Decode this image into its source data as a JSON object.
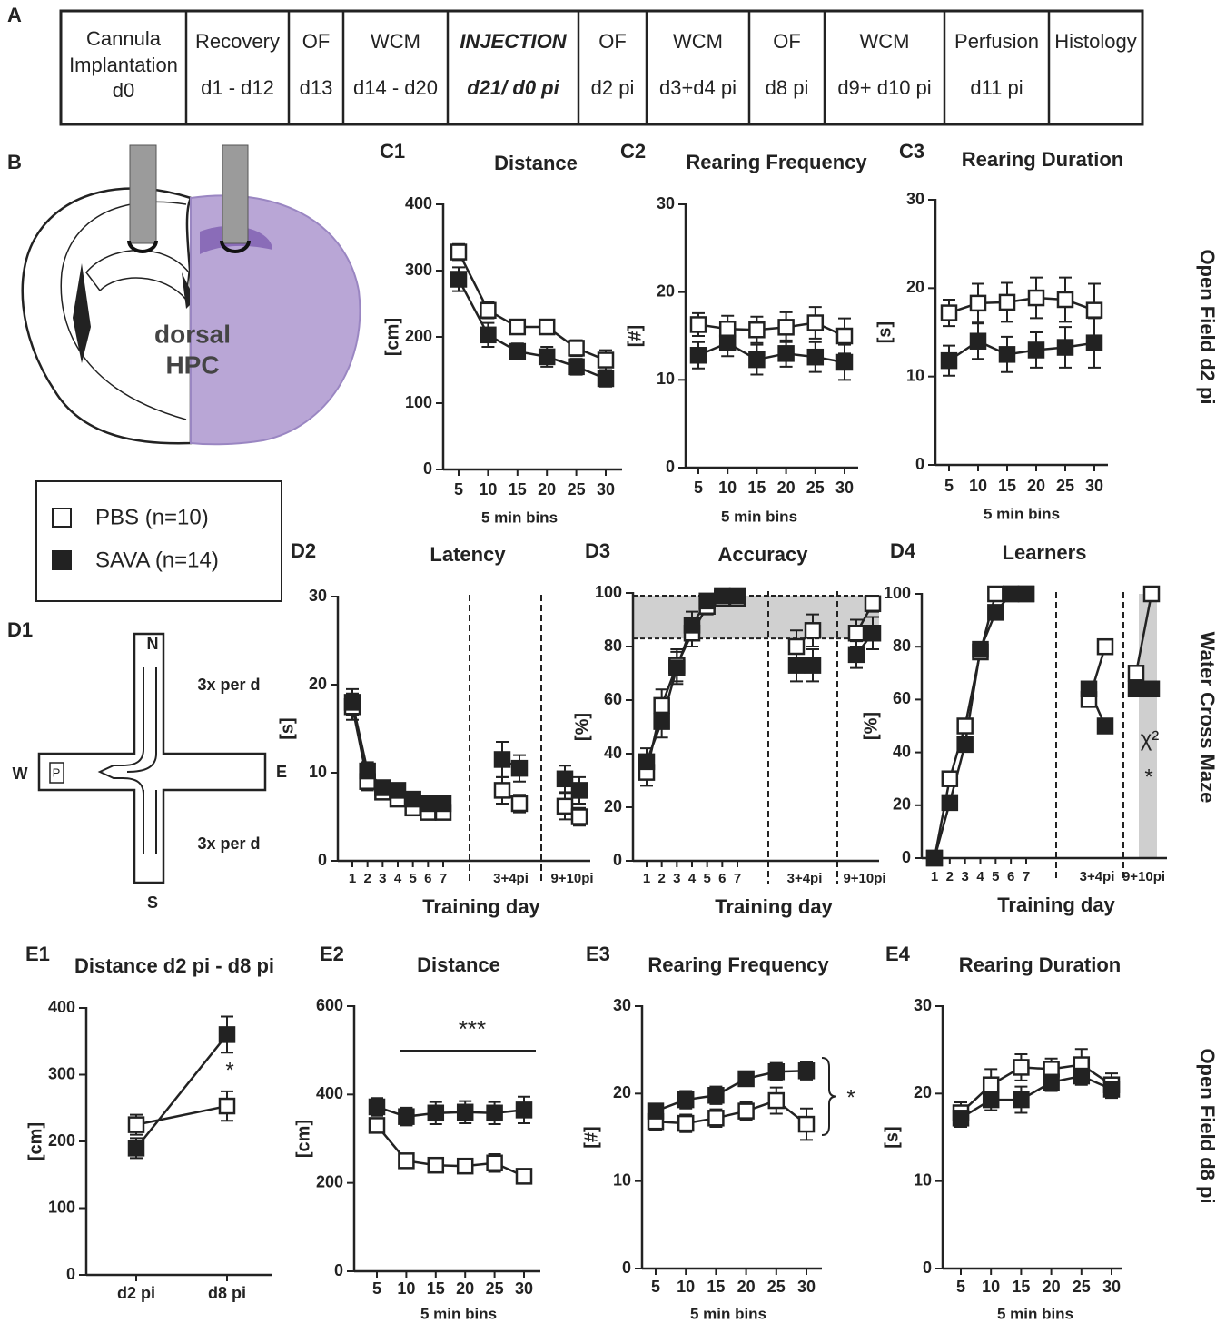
{
  "panel_labels": {
    "A": "A",
    "B": "B",
    "D1": "D1"
  },
  "timeline": {
    "cells": [
      {
        "lines": [
          "Cannula",
          "Implantation",
          "d0"
        ]
      },
      {
        "lines": [
          "Recovery",
          "d1 - d12"
        ]
      },
      {
        "lines": [
          "OF",
          "d13"
        ]
      },
      {
        "lines": [
          "WCM",
          "d14 - d20"
        ]
      },
      {
        "lines": [
          "INJECTION",
          "d21/ d0 pi"
        ]
      },
      {
        "lines": [
          "OF",
          "d2 pi"
        ]
      },
      {
        "lines": [
          "WCM",
          "d3+d4 pi"
        ]
      },
      {
        "lines": [
          "OF",
          "d8 pi"
        ]
      },
      {
        "lines": [
          "WCM",
          "d9+ d10 pi"
        ]
      },
      {
        "lines": [
          "Perfusion",
          "d11 pi"
        ]
      },
      {
        "lines": [
          "Histology"
        ]
      }
    ]
  },
  "brain": {
    "labels": [
      "dorsal",
      "HPC"
    ]
  },
  "maze": {
    "labels": {
      "N": "N",
      "S": "S",
      "E": "E",
      "W": "W",
      "P": "P",
      "top": "3x per d",
      "bottom": "3x per d"
    }
  },
  "legend": [
    {
      "name": "PBS (n=10)",
      "color": "#ffffff"
    },
    {
      "name": "SAVA (n=14)",
      "color": "#222222"
    }
  ],
  "row_labels": [
    "Open Field d2 pi",
    "Water Cross Maze",
    "Open Field d8 pi"
  ],
  "chart_data": [
    {
      "type": "line",
      "panel": "C1",
      "title": "Distance",
      "xlabel": "5 min bins",
      "ylabel": "[cm]",
      "ylim": [
        0,
        400
      ],
      "yticks": [
        0,
        100,
        200,
        300,
        400
      ],
      "sections": [
        {
          "categories": [
            "5",
            "10",
            "15",
            "20",
            "25",
            "30"
          ],
          "series": [
            {
              "values": [
                328,
                240,
                215,
                215,
                183,
                165
              ],
              "errors": [
                12,
                12,
                10,
                10,
                12,
                15
              ]
            },
            {
              "values": [
                287,
                203,
                178,
                170,
                155,
                137
              ],
              "errors": [
                18,
                18,
                12,
                15,
                12,
                12
              ]
            }
          ]
        }
      ]
    },
    {
      "type": "line",
      "panel": "C2",
      "title": "Rearing Frequency",
      "xlabel": "5 min bins",
      "ylabel": "[#]",
      "ylim": [
        0,
        30
      ],
      "yticks": [
        0,
        10,
        20,
        30
      ],
      "sections": [
        {
          "categories": [
            "5",
            "10",
            "15",
            "20",
            "25",
            "30"
          ],
          "series": [
            {
              "values": [
                16.3,
                15.8,
                15.7,
                16,
                16.5,
                15
              ],
              "errors": [
                1.3,
                1.5,
                1.5,
                1.7,
                1.8,
                2
              ]
            },
            {
              "values": [
                12.8,
                14.2,
                12.3,
                13,
                12.6,
                12
              ],
              "errors": [
                1.5,
                1.5,
                1.7,
                1.5,
                1.7,
                2
              ]
            }
          ]
        }
      ]
    },
    {
      "type": "line",
      "panel": "C3",
      "title": "Rearing Duration",
      "xlabel": "5 min bins",
      "ylabel": "[s]",
      "ylim": [
        0,
        30
      ],
      "yticks": [
        0,
        10,
        20,
        30
      ],
      "sections": [
        {
          "categories": [
            "5",
            "10",
            "15",
            "20",
            "25",
            "30"
          ],
          "series": [
            {
              "values": [
                17.2,
                18.3,
                18.4,
                18.9,
                18.7,
                17.5
              ],
              "errors": [
                1.5,
                2.2,
                2.2,
                2.3,
                2.5,
                3
              ]
            },
            {
              "values": [
                11.8,
                14,
                12.5,
                13,
                13.3,
                13.8
              ],
              "errors": [
                1.7,
                2,
                2,
                2,
                2.3,
                2.8
              ]
            }
          ]
        }
      ]
    },
    {
      "type": "line",
      "panel": "D2",
      "title": "Latency",
      "xlabel": "Training day",
      "ylabel": "[s]",
      "ylim": [
        0,
        30
      ],
      "yticks": [
        0,
        10,
        20,
        30
      ],
      "sections": [
        {
          "categories": [
            "1",
            "2",
            "3",
            "4",
            "5",
            "6",
            "7"
          ],
          "series": [
            {
              "values": [
                17.5,
                9,
                7.8,
                7,
                6,
                5.5,
                5.5
              ],
              "errors": [
                1.5,
                1,
                0.8,
                0.7,
                0.6,
                0.5,
                0.5
              ]
            },
            {
              "values": [
                18,
                10.2,
                8.3,
                8,
                7,
                6.5,
                6.5
              ],
              "errors": [
                1.5,
                1,
                0.8,
                0.8,
                0.7,
                0.7,
                0.6
              ]
            }
          ]
        },
        {
          "label": "3+4pi",
          "series": [
            {
              "values": [
                8,
                6.5
              ],
              "errors": [
                1.5,
                1
              ]
            },
            {
              "values": [
                11.5,
                10.5
              ],
              "errors": [
                2,
                1.5
              ]
            }
          ]
        },
        {
          "label": "9+10pi",
          "series": [
            {
              "values": [
                6.2,
                5
              ],
              "errors": [
                1.5,
                1
              ]
            },
            {
              "values": [
                9.3,
                8
              ],
              "errors": [
                1.5,
                1.5
              ]
            }
          ]
        }
      ]
    },
    {
      "type": "line",
      "panel": "D3",
      "title": "Accuracy",
      "xlabel": "Training day",
      "ylabel": "[%]",
      "ylim": [
        0,
        100
      ],
      "yticks": [
        0,
        20,
        40,
        60,
        80,
        100
      ],
      "band": [
        83,
        99
      ],
      "sections": [
        {
          "categories": [
            "1",
            "2",
            "3",
            "4",
            "5",
            "6",
            "7"
          ],
          "series": [
            {
              "values": [
                33,
                58,
                73,
                85,
                95,
                98,
                98
              ],
              "errors": [
                5,
                6,
                6,
                5,
                3,
                2,
                2
              ]
            },
            {
              "values": [
                37,
                52,
                72,
                88,
                97,
                99,
                99
              ],
              "errors": [
                5,
                6,
                6,
                5,
                2,
                2,
                1
              ]
            }
          ]
        },
        {
          "label": "3+4pi",
          "series": [
            {
              "values": [
                80,
                86
              ],
              "errors": [
                6,
                6
              ]
            },
            {
              "values": [
                73,
                73
              ],
              "errors": [
                6,
                6
              ]
            }
          ]
        },
        {
          "label": "9+10pi",
          "series": [
            {
              "values": [
                85,
                96
              ],
              "errors": [
                5,
                3
              ]
            },
            {
              "values": [
                77,
                85
              ],
              "errors": [
                5,
                6
              ]
            }
          ]
        }
      ]
    },
    {
      "type": "line",
      "panel": "D4",
      "title": "Learners",
      "xlabel": "Training day",
      "ylabel": "[%]",
      "ylim": [
        0,
        100
      ],
      "yticks": [
        0,
        20,
        40,
        60,
        80,
        100
      ],
      "annotations": [
        "χ²",
        "*"
      ],
      "sections": [
        {
          "categories": [
            "1",
            "2",
            "3",
            "4",
            "5",
            "6",
            "7"
          ],
          "series": [
            {
              "values": [
                0,
                30,
                50,
                78,
                100,
                100,
                100
              ]
            },
            {
              "values": [
                0,
                21,
                43,
                79,
                93,
                100,
                100
              ]
            }
          ]
        },
        {
          "label": "3+4pi",
          "series": [
            {
              "values": [
                60,
                80
              ]
            },
            {
              "values": [
                64,
                50
              ]
            }
          ]
        },
        {
          "label": "9+10pi",
          "series": [
            {
              "values": [
                70,
                100
              ]
            },
            {
              "values": [
                64,
                64
              ]
            }
          ]
        }
      ]
    },
    {
      "type": "line",
      "panel": "E1",
      "title": "Distance d2 pi - d8 pi",
      "ylabel": "[cm]",
      "ylim": [
        0,
        400
      ],
      "yticks": [
        0,
        100,
        200,
        300,
        400
      ],
      "annotations": [
        "*"
      ],
      "sections": [
        {
          "categories": [
            "d2 pi",
            "d8 pi"
          ],
          "series": [
            {
              "values": [
                225,
                253
              ],
              "errors": [
                15,
                22
              ]
            },
            {
              "values": [
                190,
                360
              ],
              "errors": [
                15,
                27
              ]
            }
          ]
        }
      ]
    },
    {
      "type": "line",
      "panel": "E2",
      "title": "Distance",
      "xlabel": "5 min bins",
      "ylabel": "[cm]",
      "ylim": [
        0,
        600
      ],
      "yticks": [
        0,
        200,
        400,
        600
      ],
      "annotations": [
        "***"
      ],
      "sections": [
        {
          "categories": [
            "5",
            "10",
            "15",
            "20",
            "25",
            "30"
          ],
          "series": [
            {
              "values": [
                330,
                250,
                240,
                238,
                245,
                215
              ],
              "errors": [
                15,
                15,
                12,
                15,
                20,
                15
              ]
            },
            {
              "values": [
                372,
                350,
                358,
                360,
                358,
                365
              ],
              "errors": [
                20,
                20,
                25,
                25,
                25,
                30
              ]
            }
          ]
        }
      ]
    },
    {
      "type": "line",
      "panel": "E3",
      "title": "Rearing Frequency",
      "xlabel": "5 min bins",
      "ylabel": "[#]",
      "ylim": [
        0,
        30
      ],
      "yticks": [
        0,
        10,
        20,
        30
      ],
      "annotations": [
        "*"
      ],
      "sections": [
        {
          "categories": [
            "5",
            "10",
            "15",
            "20",
            "25",
            "30"
          ],
          "series": [
            {
              "values": [
                16.8,
                16.6,
                17.2,
                18,
                19.2,
                16.5
              ],
              "errors": [
                1,
                1,
                1,
                1,
                1.5,
                1.8
              ]
            },
            {
              "values": [
                18,
                19.3,
                19.8,
                21.7,
                22.5,
                22.6
              ],
              "errors": [
                0.8,
                1,
                1,
                0.8,
                1,
                1
              ]
            }
          ]
        }
      ]
    },
    {
      "type": "line",
      "panel": "E4",
      "title": "Rearing Duration",
      "xlabel": "5 min bins",
      "ylabel": "[s]",
      "ylim": [
        0,
        30
      ],
      "yticks": [
        0,
        10,
        20,
        30
      ],
      "sections": [
        {
          "categories": [
            "5",
            "10",
            "15",
            "20",
            "25",
            "30"
          ],
          "series": [
            {
              "values": [
                17.8,
                21,
                23,
                22.8,
                23.3,
                21
              ],
              "errors": [
                1.2,
                1.8,
                1.5,
                1.2,
                1.8,
                1.3
              ]
            },
            {
              "values": [
                17.2,
                19.3,
                19.3,
                21.3,
                22,
                20.5
              ],
              "errors": [
                1,
                1.2,
                1.5,
                1,
                1,
                1
              ]
            }
          ]
        }
      ]
    }
  ]
}
